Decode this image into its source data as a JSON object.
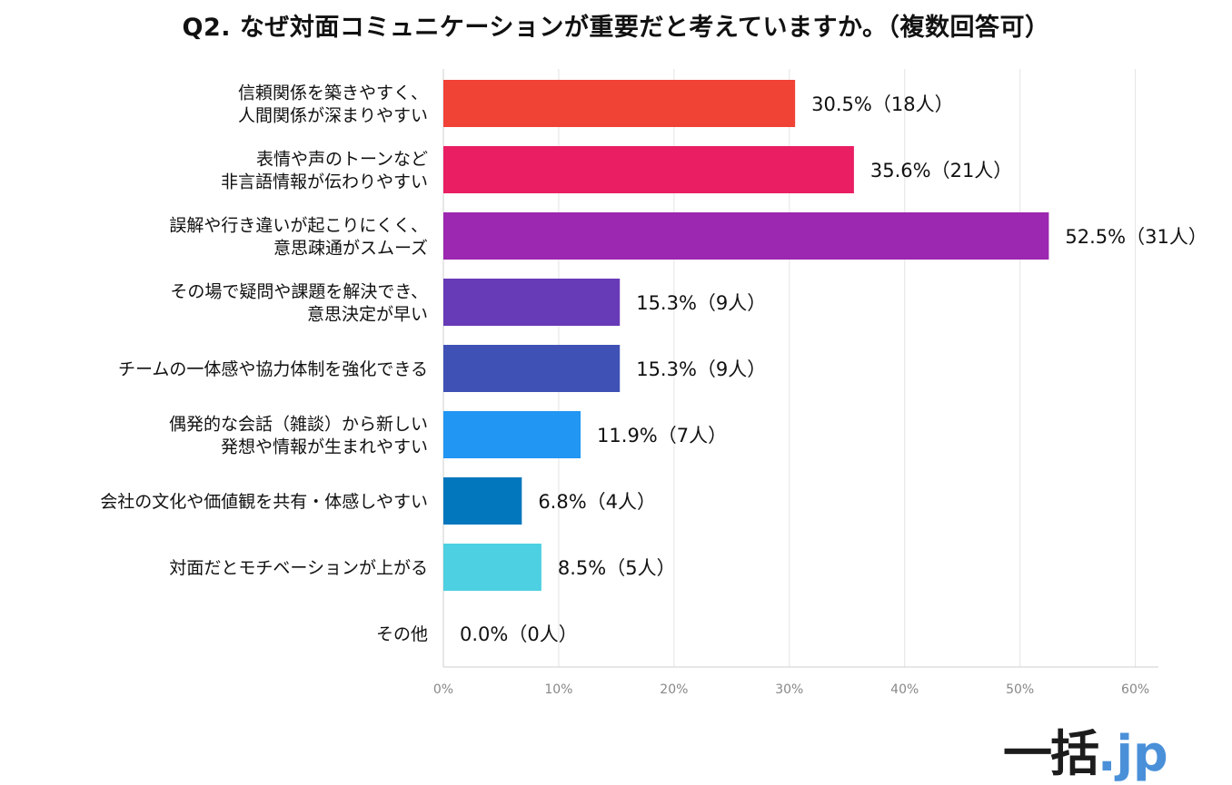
{
  "title": "Q2. なぜ対面コミュニケーションが重要だと考えていますか。（複数回答可）",
  "logo": {
    "main": "一括",
    "dot": ".",
    "tld": "jp"
  },
  "chart_data": {
    "type": "bar",
    "orientation": "horizontal",
    "xlim": [
      0,
      62
    ],
    "ticks": [
      "0%",
      "10%",
      "20%",
      "30%",
      "40%",
      "50%",
      "60%"
    ],
    "tick_values": [
      0,
      10,
      20,
      30,
      40,
      50,
      60
    ],
    "grid": true,
    "categories": [
      [
        "信頼関係を築きやすく、",
        "人間関係が深まりやすい"
      ],
      [
        "表情や声のトーンなど",
        "非言語情報が伝わりやすい"
      ],
      [
        "誤解や行き違いが起こりにくく、",
        "意思疎通がスムーズ"
      ],
      [
        "その場で疑問や課題を解決でき、",
        "意思決定が早い"
      ],
      [
        "チームの一体感や協力体制を強化できる"
      ],
      [
        "偶発的な会話（雑談）から新しい",
        "発想や情報が生まれやすい"
      ],
      [
        "会社の文化や価値観を共有・体感しやすい"
      ],
      [
        "対面だとモチベーションが上がる"
      ],
      [
        "その他"
      ]
    ],
    "values": [
      30.5,
      35.6,
      52.5,
      15.3,
      15.3,
      11.9,
      6.8,
      8.5,
      0.0
    ],
    "value_labels": [
      "30.5%（18人）",
      "35.6%（21人）",
      "52.5%（31人）",
      "15.3%（9人）",
      "15.3%（9人）",
      "11.9%（7人）",
      "6.8%（4人）",
      "8.5%（5人）",
      "0.0%（0人）"
    ],
    "colors": [
      "#f14236",
      "#e91e63",
      "#9c27b0",
      "#673ab7",
      "#3f51b5",
      "#2196f3",
      "#0277bd",
      "#4dd0e1",
      "#cccccc"
    ]
  }
}
